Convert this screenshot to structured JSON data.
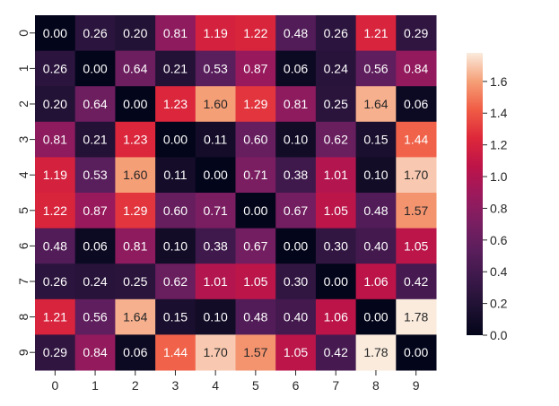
{
  "chart_data": {
    "type": "heatmap",
    "x_labels": [
      "0",
      "1",
      "2",
      "3",
      "4",
      "5",
      "6",
      "7",
      "8",
      "9"
    ],
    "y_labels": [
      "0",
      "1",
      "2",
      "3",
      "4",
      "5",
      "6",
      "7",
      "8",
      "9"
    ],
    "values": [
      [
        0.0,
        0.26,
        0.2,
        0.81,
        1.19,
        1.22,
        0.48,
        0.26,
        1.21,
        0.29
      ],
      [
        0.26,
        0.0,
        0.64,
        0.21,
        0.53,
        0.87,
        0.06,
        0.24,
        0.56,
        0.84
      ],
      [
        0.2,
        0.64,
        0.0,
        1.23,
        1.6,
        1.29,
        0.81,
        0.25,
        1.64,
        0.06
      ],
      [
        0.81,
        0.21,
        1.23,
        0.0,
        0.11,
        0.6,
        0.1,
        0.62,
        0.15,
        1.44
      ],
      [
        1.19,
        0.53,
        1.6,
        0.11,
        0.0,
        0.71,
        0.38,
        1.01,
        0.1,
        1.7
      ],
      [
        1.22,
        0.87,
        1.29,
        0.6,
        0.71,
        0.0,
        0.67,
        1.05,
        0.48,
        1.57
      ],
      [
        0.48,
        0.06,
        0.81,
        0.1,
        0.38,
        0.67,
        0.0,
        0.3,
        0.4,
        1.05
      ],
      [
        0.26,
        0.24,
        0.25,
        0.62,
        1.01,
        1.05,
        0.3,
        0.0,
        1.06,
        0.42
      ],
      [
        1.21,
        0.56,
        1.64,
        0.15,
        0.1,
        0.48,
        0.4,
        1.06,
        0.0,
        1.78
      ],
      [
        0.29,
        0.84,
        0.06,
        1.44,
        1.7,
        1.57,
        1.05,
        0.42,
        1.78,
        0.0
      ]
    ],
    "value_format": "2-decimal",
    "colormap": "rocket",
    "vmin": 0.0,
    "vmax": 1.78,
    "colorbar_ticks": [
      "0.0",
      "0.2",
      "0.4",
      "0.6",
      "0.8",
      "1.0",
      "1.2",
      "1.4",
      "1.6"
    ],
    "colorbar_tick_values": [
      0.0,
      0.2,
      0.4,
      0.6,
      0.8,
      1.0,
      1.2,
      1.4,
      1.6
    ],
    "colorbar_position": "right",
    "grid": false
  }
}
